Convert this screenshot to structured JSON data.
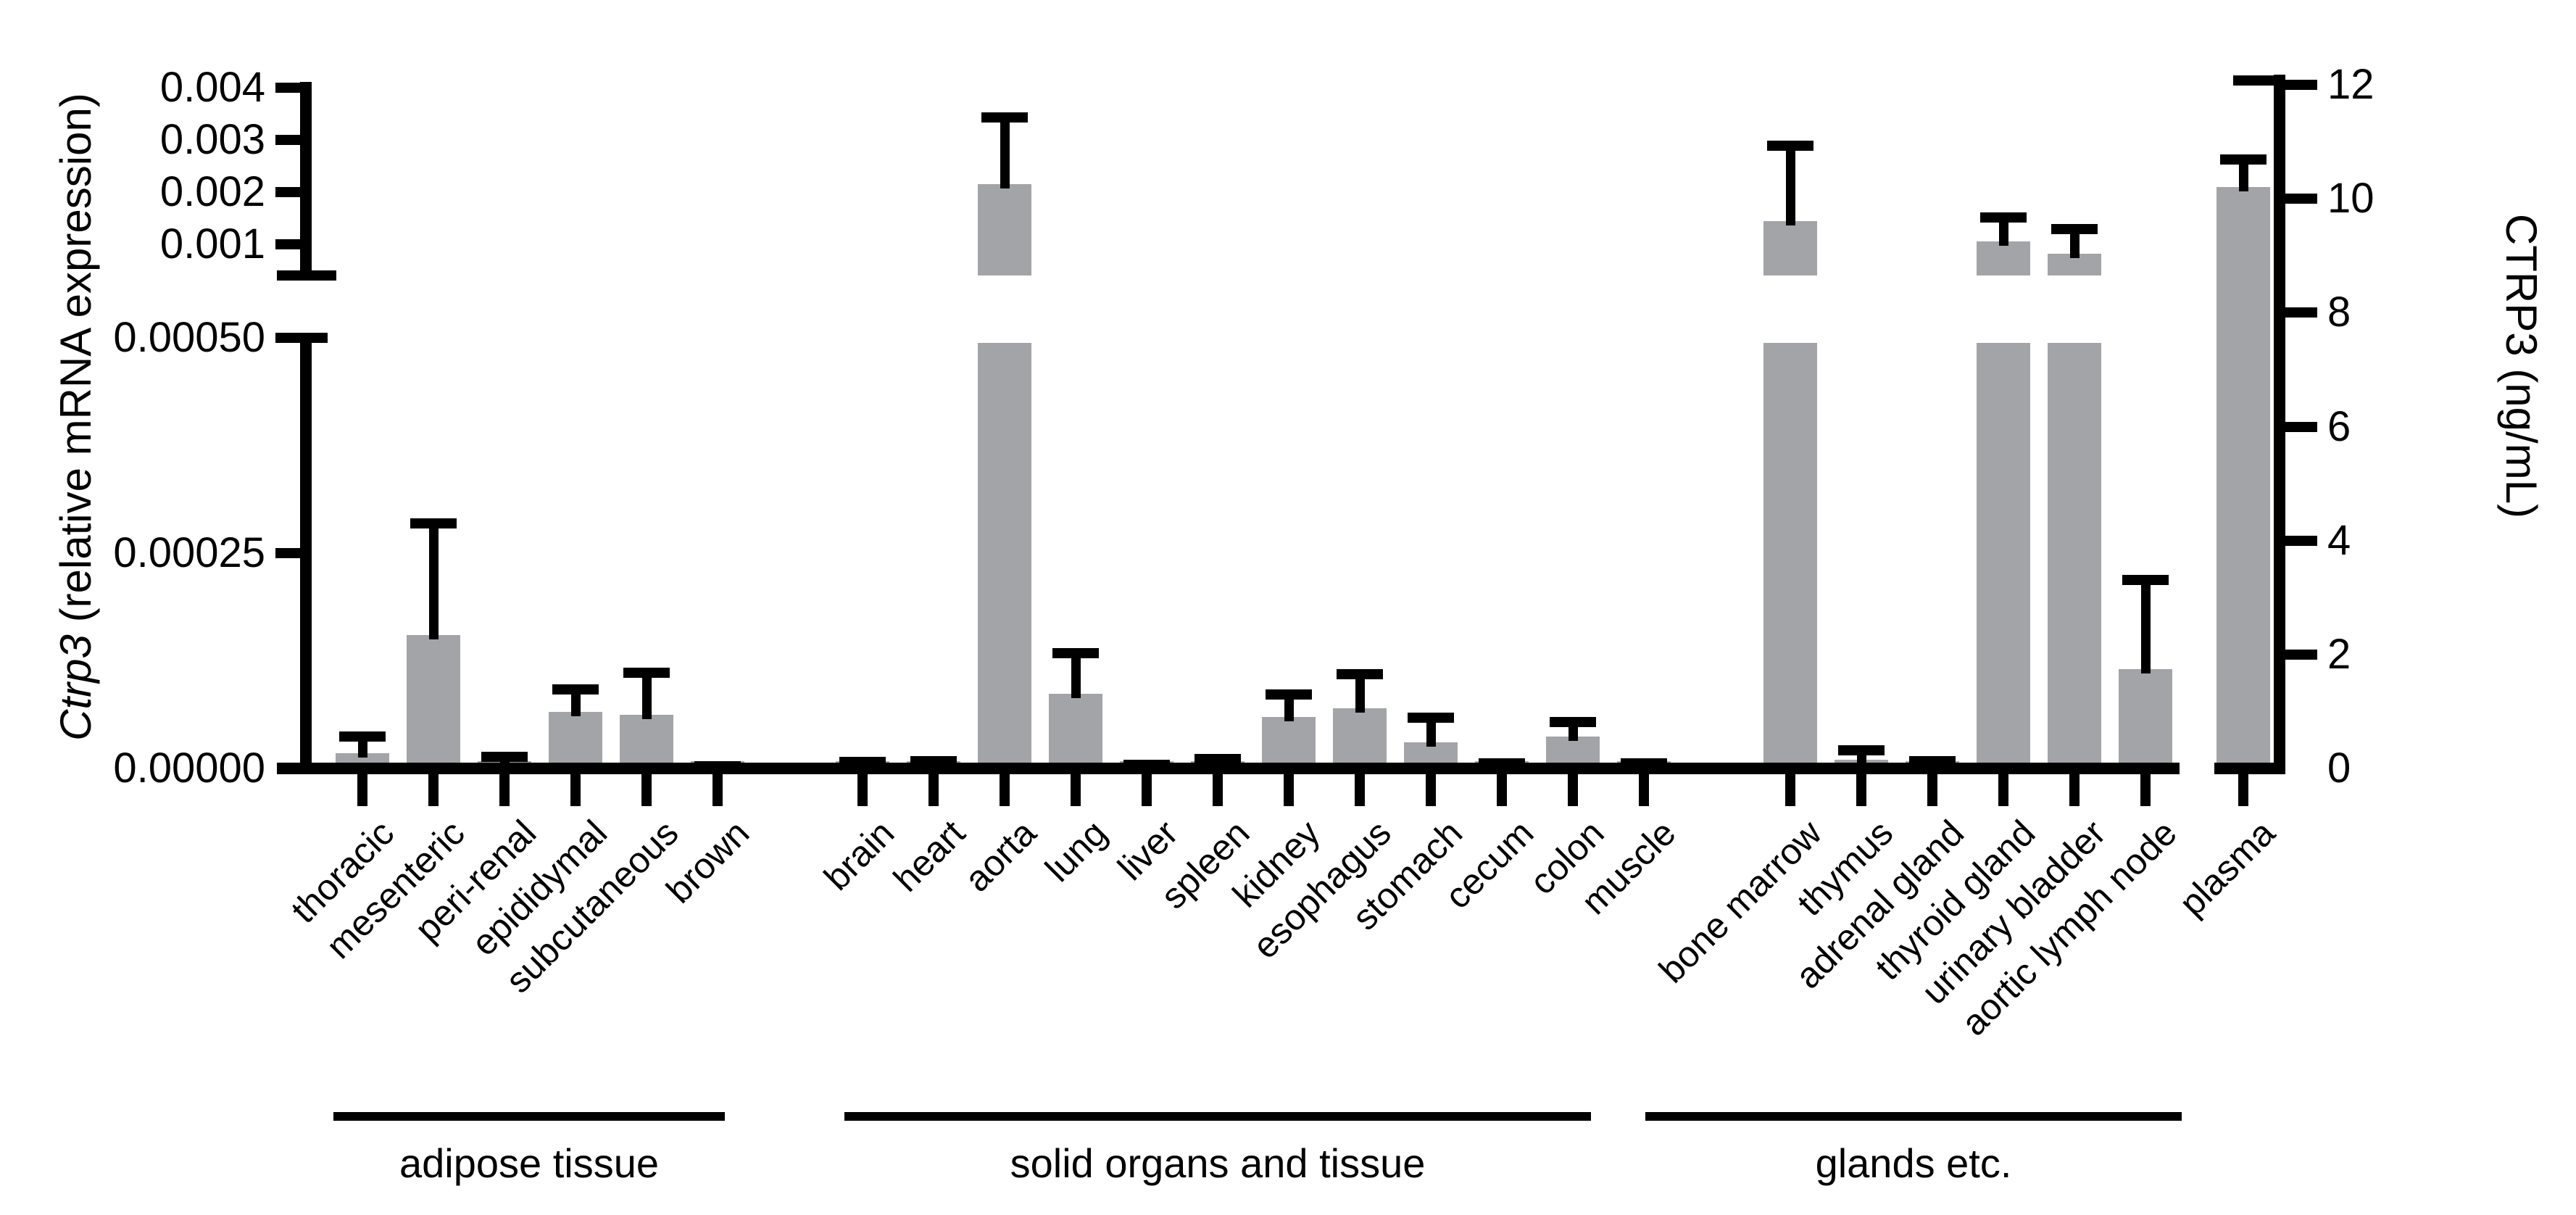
{
  "figure": {
    "title": "",
    "background": "#ffffff",
    "text_color": "#000000"
  },
  "chart_data": {
    "type": "bar",
    "title": "",
    "bar_color": "#a2a4a8",
    "error_bar_color": "#000000",
    "grid": "off",
    "legend": "none",
    "left_axis": {
      "label_italic": "Ctrp3",
      "label_rest": " (relative mRNA expression)",
      "broken": true,
      "upper_segment": {
        "range": [
          0.001,
          0.004
        ],
        "ticks": [
          0.001,
          0.002,
          0.003,
          0.004
        ],
        "tick_labels": [
          "0.001",
          "0.002",
          "0.003",
          "0.004"
        ]
      },
      "lower_segment": {
        "range": [
          0,
          0.0005
        ],
        "ticks": [
          0,
          0.00025,
          0.0005
        ],
        "tick_labels": [
          "0.00000",
          "0.00025",
          "0.00050"
        ]
      }
    },
    "right_axis": {
      "label": "CTRP3 (ng/mL)",
      "range": [
        0,
        12
      ],
      "ticks": [
        0,
        2,
        4,
        6,
        8,
        10,
        12
      ],
      "tick_labels": [
        "0",
        "2",
        "4",
        "6",
        "8",
        "10",
        "12"
      ]
    },
    "groups": [
      {
        "name": "adipose tissue",
        "bars": [
          {
            "category": "thoracic",
            "value": 1.8e-05,
            "error": 2e-05,
            "axis": "left"
          },
          {
            "category": "mesenteric",
            "value": 0.000155,
            "error": 0.00013,
            "axis": "left"
          },
          {
            "category": "peri-renal",
            "value": 4e-06,
            "error": 1e-05,
            "axis": "left"
          },
          {
            "category": "epididymal",
            "value": 6.6e-05,
            "error": 2.7e-05,
            "axis": "left"
          },
          {
            "category": "subcutaneous",
            "value": 6.2e-05,
            "error": 5e-05,
            "axis": "left"
          },
          {
            "category": "brown",
            "value": 1e-06,
            "error": 2e-06,
            "axis": "left"
          }
        ]
      },
      {
        "name": "solid organs and tissue",
        "bars": [
          {
            "category": "brain",
            "value": 2e-06,
            "error": 6e-06,
            "axis": "left"
          },
          {
            "category": "heart",
            "value": 3e-06,
            "error": 6e-06,
            "axis": "left"
          },
          {
            "category": "aorta",
            "value": 0.00215,
            "error": 0.0013,
            "axis": "left"
          },
          {
            "category": "lung",
            "value": 8.7e-05,
            "error": 4.8e-05,
            "axis": "left"
          },
          {
            "category": "liver",
            "value": 1e-06,
            "error": 4e-06,
            "axis": "left"
          },
          {
            "category": "spleen",
            "value": 4e-06,
            "error": 8e-06,
            "axis": "left"
          },
          {
            "category": "kidney",
            "value": 6e-05,
            "error": 2.7e-05,
            "axis": "left"
          },
          {
            "category": "esophagus",
            "value": 7e-05,
            "error": 4e-05,
            "axis": "left"
          },
          {
            "category": "stomach",
            "value": 3e-05,
            "error": 3e-05,
            "axis": "left"
          },
          {
            "category": "cecum",
            "value": 2e-06,
            "error": 5e-06,
            "axis": "left"
          },
          {
            "category": "colon",
            "value": 3.7e-05,
            "error": 1.8e-05,
            "axis": "left"
          },
          {
            "category": "muscle",
            "value": 2e-06,
            "error": 5e-06,
            "axis": "left"
          }
        ]
      },
      {
        "name": "glands etc.",
        "bars": [
          {
            "category": "bone marrow",
            "value": 0.00145,
            "error": 0.00145,
            "axis": "left"
          },
          {
            "category": "thymus",
            "value": 1e-05,
            "error": 1.2e-05,
            "axis": "left"
          },
          {
            "category": "adrenal gland",
            "value": 3e-06,
            "error": 6e-06,
            "axis": "left"
          },
          {
            "category": "thyroid gland",
            "value": 0.00105,
            "error": 0.00048,
            "axis": "left"
          },
          {
            "category": "urinary bladder",
            "value": 0.00085,
            "error": 0.00045,
            "axis": "left"
          },
          {
            "category": "aortic lymph node",
            "value": 0.000115,
            "error": 0.000105,
            "axis": "left"
          }
        ]
      },
      {
        "name": "",
        "bars": [
          {
            "category": "plasma",
            "value": 10.2,
            "error": 0.5,
            "axis": "right"
          }
        ]
      }
    ]
  }
}
